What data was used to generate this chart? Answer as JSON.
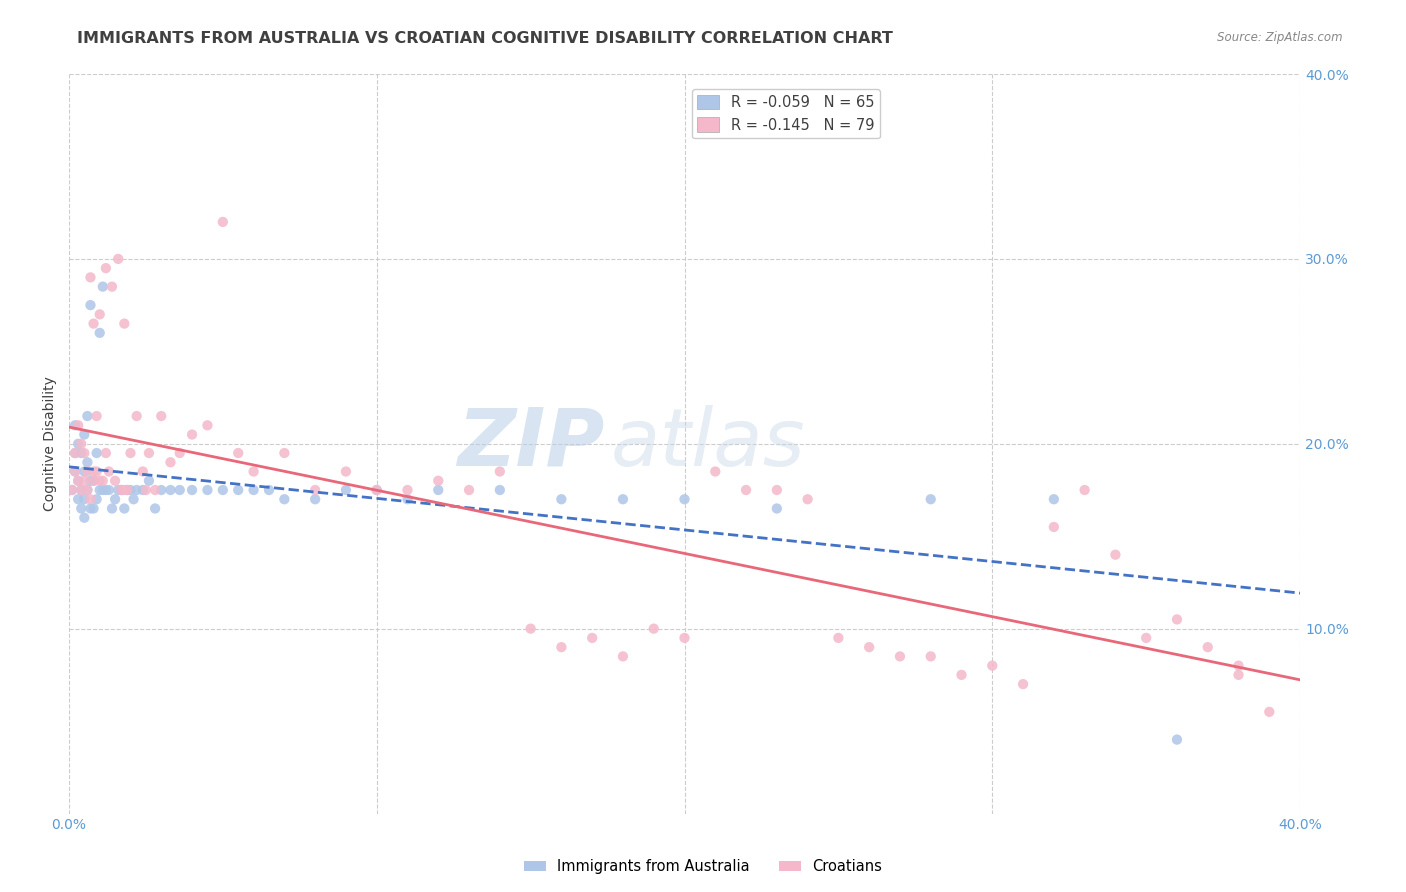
{
  "title": "IMMIGRANTS FROM AUSTRALIA VS CROATIAN COGNITIVE DISABILITY CORRELATION CHART",
  "source": "Source: ZipAtlas.com",
  "ylabel": "Cognitive Disability",
  "xlim": [
    0.0,
    0.4
  ],
  "ylim": [
    0.0,
    0.4
  ],
  "xticks": [
    0.0,
    0.1,
    0.2,
    0.3,
    0.4
  ],
  "yticks": [
    0.1,
    0.2,
    0.3,
    0.4
  ],
  "xticklabels": [
    "0.0%",
    "",
    "",
    "",
    "40.0%"
  ],
  "right_yticklabels": [
    "10.0%",
    "20.0%",
    "30.0%",
    "40.0%"
  ],
  "series": [
    {
      "label": "Immigrants from Australia",
      "R": -0.059,
      "N": 65,
      "color": "#aec6e8",
      "line_color": "#4472c4",
      "line_style": "--"
    },
    {
      "label": "Croatians",
      "R": -0.145,
      "N": 79,
      "color": "#f4b8ca",
      "line_color": "#e8687a",
      "line_style": "-"
    }
  ],
  "australia_x": [
    0.001,
    0.002,
    0.002,
    0.002,
    0.003,
    0.003,
    0.003,
    0.004,
    0.004,
    0.004,
    0.005,
    0.005,
    0.005,
    0.005,
    0.006,
    0.006,
    0.006,
    0.007,
    0.007,
    0.007,
    0.008,
    0.008,
    0.009,
    0.009,
    0.01,
    0.01,
    0.011,
    0.011,
    0.012,
    0.013,
    0.014,
    0.015,
    0.016,
    0.017,
    0.018,
    0.019,
    0.02,
    0.021,
    0.022,
    0.024,
    0.026,
    0.028,
    0.03,
    0.033,
    0.036,
    0.04,
    0.045,
    0.05,
    0.055,
    0.06,
    0.065,
    0.07,
    0.08,
    0.09,
    0.1,
    0.11,
    0.12,
    0.14,
    0.16,
    0.18,
    0.2,
    0.23,
    0.28,
    0.32,
    0.36
  ],
  "australia_y": [
    0.175,
    0.185,
    0.195,
    0.21,
    0.17,
    0.18,
    0.2,
    0.165,
    0.175,
    0.195,
    0.16,
    0.17,
    0.185,
    0.205,
    0.175,
    0.19,
    0.215,
    0.165,
    0.18,
    0.275,
    0.165,
    0.18,
    0.17,
    0.195,
    0.175,
    0.26,
    0.175,
    0.285,
    0.175,
    0.175,
    0.165,
    0.17,
    0.175,
    0.175,
    0.165,
    0.175,
    0.175,
    0.17,
    0.175,
    0.175,
    0.18,
    0.165,
    0.175,
    0.175,
    0.175,
    0.175,
    0.175,
    0.175,
    0.175,
    0.175,
    0.175,
    0.17,
    0.17,
    0.175,
    0.175,
    0.17,
    0.175,
    0.175,
    0.17,
    0.17,
    0.17,
    0.165,
    0.17,
    0.17,
    0.04
  ],
  "croatia_x": [
    0.001,
    0.002,
    0.002,
    0.003,
    0.003,
    0.004,
    0.004,
    0.005,
    0.005,
    0.006,
    0.006,
    0.007,
    0.007,
    0.008,
    0.008,
    0.009,
    0.009,
    0.01,
    0.01,
    0.011,
    0.012,
    0.013,
    0.014,
    0.015,
    0.016,
    0.017,
    0.018,
    0.019,
    0.02,
    0.022,
    0.024,
    0.026,
    0.028,
    0.03,
    0.033,
    0.036,
    0.04,
    0.045,
    0.05,
    0.055,
    0.06,
    0.07,
    0.08,
    0.09,
    0.1,
    0.11,
    0.12,
    0.13,
    0.14,
    0.15,
    0.16,
    0.17,
    0.18,
    0.19,
    0.2,
    0.21,
    0.22,
    0.23,
    0.24,
    0.25,
    0.26,
    0.27,
    0.28,
    0.29,
    0.3,
    0.31,
    0.32,
    0.33,
    0.34,
    0.35,
    0.36,
    0.37,
    0.38,
    0.39,
    0.008,
    0.012,
    0.018,
    0.025,
    0.38
  ],
  "croatia_y": [
    0.175,
    0.185,
    0.195,
    0.18,
    0.21,
    0.175,
    0.2,
    0.18,
    0.195,
    0.175,
    0.185,
    0.17,
    0.29,
    0.18,
    0.265,
    0.185,
    0.215,
    0.18,
    0.27,
    0.18,
    0.295,
    0.185,
    0.285,
    0.18,
    0.3,
    0.175,
    0.265,
    0.175,
    0.195,
    0.215,
    0.185,
    0.195,
    0.175,
    0.215,
    0.19,
    0.195,
    0.205,
    0.21,
    0.32,
    0.195,
    0.185,
    0.195,
    0.175,
    0.185,
    0.175,
    0.175,
    0.18,
    0.175,
    0.185,
    0.1,
    0.09,
    0.095,
    0.085,
    0.1,
    0.095,
    0.185,
    0.175,
    0.175,
    0.17,
    0.095,
    0.09,
    0.085,
    0.085,
    0.075,
    0.08,
    0.07,
    0.155,
    0.175,
    0.14,
    0.095,
    0.105,
    0.09,
    0.08,
    0.055,
    0.185,
    0.195,
    0.175,
    0.175,
    0.075
  ],
  "watermark_zip": "ZIP",
  "watermark_atlas": "atlas",
  "background_color": "#ffffff",
  "grid_color": "#cccccc",
  "tick_color": "#5b9bd5",
  "title_color": "#404040",
  "title_fontsize": 11.5,
  "axis_label_fontsize": 10,
  "tick_fontsize": 10,
  "legend_fontsize": 10.5
}
